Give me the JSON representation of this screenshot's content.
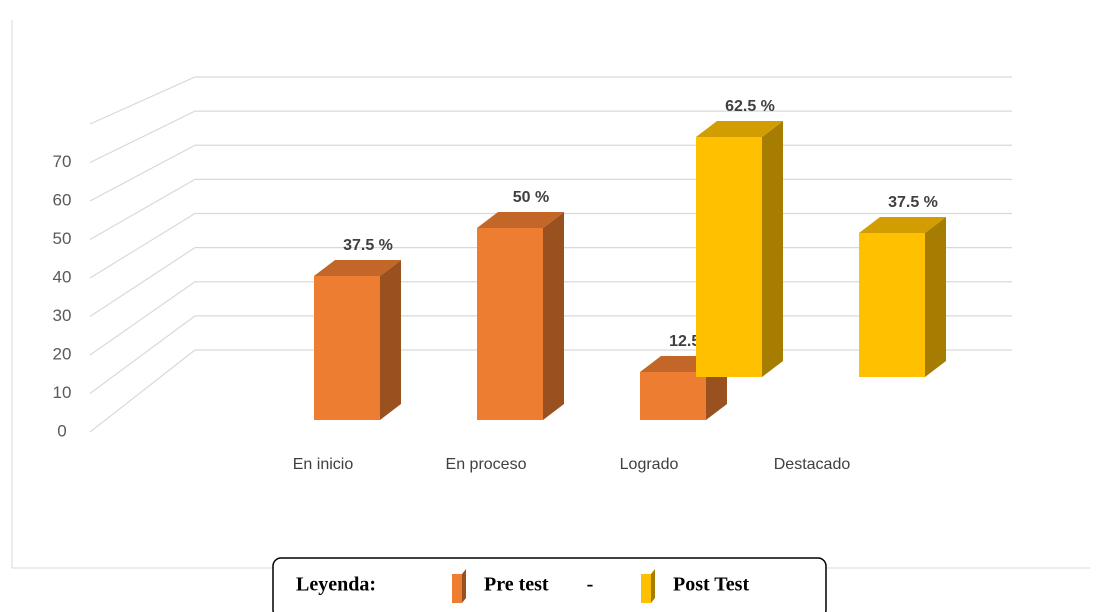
{
  "chart_data": {
    "type": "bar3d",
    "categories": [
      "En inicio",
      "En proceso",
      "Logrado",
      "Destacado"
    ],
    "series": [
      {
        "name": "Pre test",
        "color": "#ED7D31",
        "values": [
          37.5,
          50,
          12.5,
          null
        ],
        "value_labels": [
          "37.5 %",
          "50 %",
          "12.5 %",
          null
        ]
      },
      {
        "name": "Post Test",
        "color": "#FFC000",
        "values": [
          null,
          null,
          62.5,
          37.5
        ],
        "value_labels": [
          null,
          null,
          "62.5 %",
          "37.5 %"
        ]
      }
    ],
    "ylim": [
      0,
      80
    ],
    "yticks": [
      0,
      10,
      20,
      30,
      40,
      50,
      60,
      70
    ],
    "grid": true,
    "legend": {
      "title": "Leyenda:",
      "separator": "-"
    }
  }
}
